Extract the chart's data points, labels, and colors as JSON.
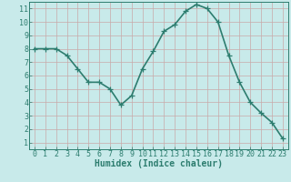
{
  "x": [
    0,
    1,
    2,
    3,
    4,
    5,
    6,
    7,
    8,
    9,
    10,
    11,
    12,
    13,
    14,
    15,
    16,
    17,
    18,
    19,
    20,
    21,
    22,
    23
  ],
  "y": [
    8.0,
    8.0,
    8.0,
    7.5,
    6.5,
    5.5,
    5.5,
    5.0,
    3.8,
    4.5,
    6.5,
    7.8,
    9.3,
    9.8,
    10.8,
    11.3,
    11.0,
    10.0,
    7.5,
    5.5,
    4.0,
    3.2,
    2.5,
    1.3
  ],
  "line_color": "#2d7d6f",
  "marker": "+",
  "marker_size": 4,
  "background_color": "#c8eaea",
  "grid_color": "#c8a8a8",
  "xlabel": "Humidex (Indice chaleur)",
  "xlim": [
    -0.5,
    23.5
  ],
  "ylim": [
    0.5,
    11.5
  ],
  "xticks": [
    0,
    1,
    2,
    3,
    4,
    5,
    6,
    7,
    8,
    9,
    10,
    11,
    12,
    13,
    14,
    15,
    16,
    17,
    18,
    19,
    20,
    21,
    22,
    23
  ],
  "yticks": [
    1,
    2,
    3,
    4,
    5,
    6,
    7,
    8,
    9,
    10,
    11
  ],
  "tick_fontsize": 6,
  "xlabel_fontsize": 7,
  "linewidth": 1.2
}
